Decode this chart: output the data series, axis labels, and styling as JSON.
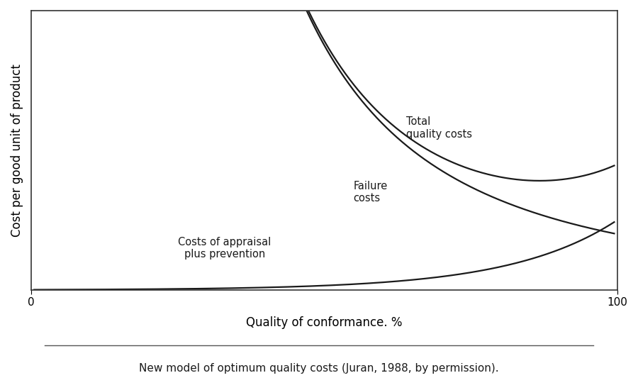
{
  "title": "",
  "xlabel": "Quality of conformance. %",
  "ylabel": "Cost per good unit of product",
  "xlim": [
    0,
    100
  ],
  "ylim": [
    0,
    10
  ],
  "xtick_labels": [
    "0",
    "100"
  ],
  "xtick_positions": [
    0,
    100
  ],
  "caption": "New model of optimum quality costs (Juran, 1988, by permission).",
  "label_failure": "Failure\ncosts",
  "label_appraisal": "Costs of appraisal\nplus prevention",
  "label_total": "Total\nquality costs",
  "line_color": "#1a1a1a",
  "background_color": "#ffffff",
  "font_size_labels": 11,
  "font_size_caption": 11,
  "font_size_axis_label": 12
}
